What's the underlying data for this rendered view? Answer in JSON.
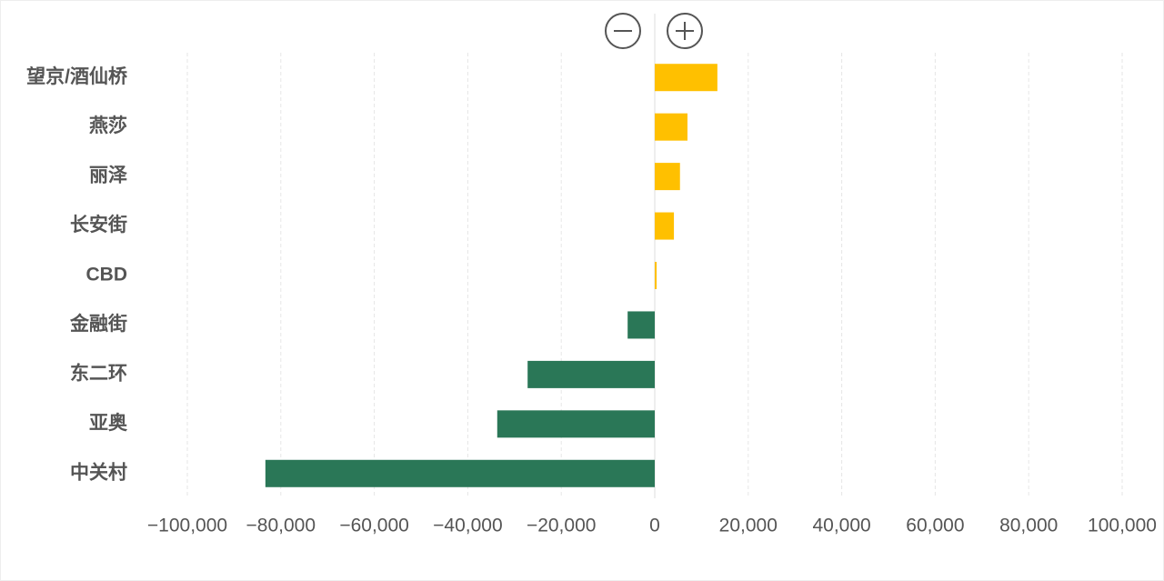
{
  "chart_data": {
    "type": "bar",
    "orientation": "horizontal",
    "categories": [
      "望京/酒仙桥",
      "燕莎",
      "丽泽",
      "长安街",
      "CBD",
      "金融街",
      "东二环",
      "亚奥",
      "中关村"
    ],
    "values": [
      13400,
      7000,
      5400,
      4100,
      400,
      -5800,
      -27200,
      -33700,
      -83300
    ],
    "positive_color": "#ffc000",
    "negative_color": "#2a7757",
    "xlim": [
      -100000,
      100000
    ],
    "xticks": [
      {
        "value": -100000,
        "label": "−100,000"
      },
      {
        "value": -80000,
        "label": "−80,000"
      },
      {
        "value": -60000,
        "label": "−60,000"
      },
      {
        "value": -40000,
        "label": "−40,000"
      },
      {
        "value": -20000,
        "label": "−20,000"
      },
      0,
      {
        "value": 20000,
        "label": "20,000"
      },
      {
        "value": 40000,
        "label": "40,000"
      },
      {
        "value": 60000,
        "label": "60,000"
      },
      {
        "value": 80000,
        "label": "80,000"
      },
      {
        "value": 100000,
        "label": "100,000"
      }
    ],
    "grid": true
  }
}
